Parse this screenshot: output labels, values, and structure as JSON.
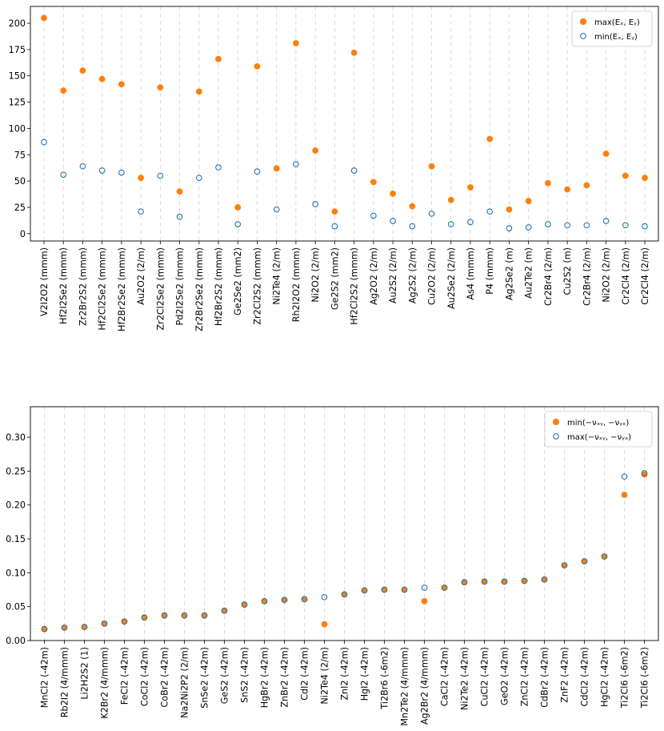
{
  "colors": {
    "orange": "#ff7f0e",
    "blue": "#1f77b4",
    "purple": "#9467bd",
    "green": "#2ca02c",
    "black": "#000000"
  },
  "chart_data": [
    {
      "type": "scatter",
      "title": "",
      "xlabel": "",
      "ylabel": "",
      "ylim": [
        -7,
        216
      ],
      "yticks": [
        0,
        25,
        50,
        75,
        100,
        125,
        150,
        175,
        200
      ],
      "grid": "vertical dashed lines at each category",
      "legend_position": "top-right",
      "legend": [
        "max(Eₓ, Eᵧ)",
        "min(Eₓ, Eᵧ)"
      ],
      "categories": [
        "V2I2O2 (mmm)",
        "Hf2I2Se2 (mmm)",
        "Zr2Br2S2 (mmm)",
        "Hf2Cl2Se2 (mmm)",
        "Hf2Br2Se2 (mmm)",
        "Au2O2 (2/m)",
        "Zr2Cl2Se2 (mmm)",
        "Pd2I2Se2 (mmm)",
        "Zr2Br2Se2 (mmm)",
        "Hf2Br2S2 (mmm)",
        "Ge2Se2 (mm2)",
        "Zr2Cl2S2 (mmm)",
        "Ni2Te4 (2/m)",
        "Rh2I2O2 (mmm)",
        "Ni2O2 (2/m)",
        "Ge2S2 (mm2)",
        "Hf2Cl2S2 (mmm)",
        "Ag2O2 (2/m)",
        "Au2S2 (2/m)",
        "Ag2S2 (2/m)",
        "Cu2O2 (2/m)",
        "Au2Se2 (2/m)",
        "As4 (mmm)",
        "P4 (mmm)",
        "Ag2Se2 (m)",
        "Au2Te2 (m)",
        "Cr2Br4 (2/m)",
        "Cu2S2 (m)",
        "Cr2Br4 (2/m)",
        "Ni2O2 (2/m)",
        "Cr2Cl4 (2/m)",
        "Cr2Cl4 (2/m)"
      ],
      "label_colors": [
        "purple",
        "black",
        "black",
        "black",
        "black",
        "black",
        "black",
        "black",
        "black",
        "black",
        "black",
        "black",
        "black",
        "black",
        "black",
        "black",
        "black",
        "black",
        "black",
        "black",
        "black",
        "black",
        "black",
        "black",
        "black",
        "black",
        "purple",
        "black",
        "green",
        "green",
        "purple",
        "green"
      ],
      "series": [
        {
          "name": "max(Ex, Ey)",
          "marker": "filled",
          "color": "orange",
          "values": [
            205,
            136,
            155,
            147,
            142,
            53,
            139,
            40,
            135,
            166,
            25,
            159,
            62,
            181,
            79,
            21,
            172,
            49,
            38,
            26,
            64,
            32,
            44,
            90,
            23,
            31,
            48,
            42,
            46,
            76,
            55,
            53
          ]
        },
        {
          "name": "min(Ex, Ey)",
          "marker": "hollow",
          "color": "blue",
          "values": [
            87,
            56,
            64,
            60,
            58,
            21,
            55,
            16,
            53,
            63,
            9,
            59,
            23,
            66,
            28,
            7,
            60,
            17,
            12,
            7,
            19,
            9,
            11,
            21,
            5,
            6,
            9,
            8,
            8,
            12,
            8,
            7
          ]
        }
      ]
    },
    {
      "type": "scatter",
      "title": "",
      "xlabel": "",
      "ylabel": "",
      "ylim": [
        0,
        0.345
      ],
      "yticks": [
        "0.00",
        "0.05",
        "0.10",
        "0.15",
        "0.20",
        "0.25",
        "0.30"
      ],
      "grid": "vertical dashed lines at each category",
      "legend_position": "top-right",
      "legend": [
        "min(−νₓᵧ, −νᵧₓ)",
        "max(−νₓᵧ, −νᵧₓ)"
      ],
      "categories": [
        "MnCl2 (-42m)",
        "Rb2I2 (4/mmm)",
        "Li2H2S2 (1)",
        "K2Br2 (4/mmm)",
        "FeCl2 (-42m)",
        "CoCl2 (-42m)",
        "CoBr2 (-42m)",
        "Na2Ni2P2 (2/m)",
        "SnSe2 (-42m)",
        "GeS2 (-42m)",
        "SnS2 (-42m)",
        "HgBr2 (-42m)",
        "ZnBr2 (-42m)",
        "CdI2 (-42m)",
        "Ni2Te4 (2/m)",
        "ZnI2 (-42m)",
        "HgI2 (-42m)",
        "Ti2Br6 (-6m2)",
        "Mn2Te2 (4/mmm)",
        "Ag2Br2 (4/mmm)",
        "CaCl2 (-42m)",
        "Ni2Te2 (-42m)",
        "CuCl2 (-42m)",
        "GeO2 (-42m)",
        "ZnCl2 (-42m)",
        "CdBr2 (-42m)",
        "ZnF2 (-42m)",
        "CdCl2 (-42m)",
        "HgCl2 (-42m)",
        "Ti2Cl6 (-6m2)",
        "Ti2Cl6 (-6m2)"
      ],
      "label_colors": [
        "green",
        "black",
        "black",
        "black",
        "green",
        "green",
        "green",
        "black",
        "black",
        "black",
        "black",
        "black",
        "black",
        "black",
        "black",
        "black",
        "black",
        "green",
        "purple",
        "black",
        "black",
        "green",
        "black",
        "black",
        "black",
        "black",
        "black",
        "black",
        "black",
        "green",
        "purple"
      ],
      "series": [
        {
          "name": "min(-vxy, -vyx)",
          "marker": "filled",
          "color": "orange",
          "values": [
            0.017,
            0.019,
            0.02,
            0.025,
            0.028,
            0.034,
            0.037,
            0.037,
            0.037,
            0.044,
            0.053,
            0.058,
            0.06,
            0.061,
            0.024,
            0.068,
            0.074,
            0.075,
            0.075,
            0.058,
            0.078,
            0.086,
            0.087,
            0.087,
            0.088,
            0.09,
            0.111,
            0.117,
            0.124,
            0.215,
            0.245
          ]
        },
        {
          "name": "max(-vxy, -vyx)",
          "marker": "hollow",
          "color": "blue",
          "values": [
            0.017,
            0.019,
            0.02,
            0.025,
            0.028,
            0.034,
            0.037,
            0.037,
            0.037,
            0.044,
            0.053,
            0.058,
            0.06,
            0.061,
            0.064,
            0.068,
            0.074,
            0.075,
            0.075,
            0.078,
            0.078,
            0.086,
            0.087,
            0.087,
            0.088,
            0.09,
            0.111,
            0.117,
            0.124,
            0.242,
            0.247
          ]
        }
      ]
    }
  ]
}
